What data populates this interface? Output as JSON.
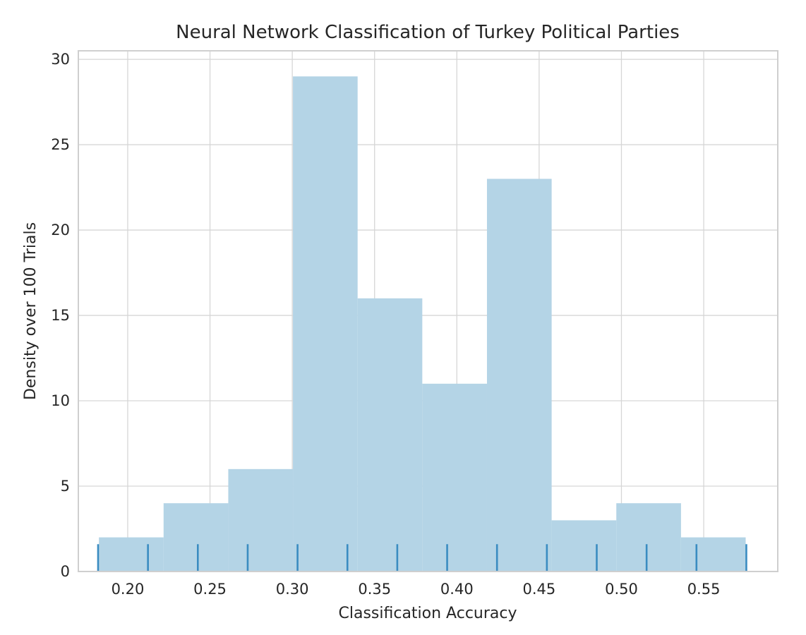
{
  "colors": {
    "bar_fill": "#b3d3e6",
    "rug": "#3a8cc1",
    "grid": "#d6d6d6",
    "text": "#262626"
  },
  "chart_data": {
    "type": "bar",
    "subtype": "histogram",
    "title": "Neural Network Classification of Turkey Political Parties",
    "xlabel": "Classification Accuracy",
    "ylabel": "Density over 100 Trials",
    "xlim": [
      0.17,
      0.595
    ],
    "ylim": [
      0,
      30.5
    ],
    "grid": true,
    "legend": "none",
    "xticks": [
      0.2,
      0.25,
      0.3,
      0.35,
      0.4,
      0.45,
      0.5,
      0.55
    ],
    "xtick_labels": [
      "0.20",
      "0.25",
      "0.30",
      "0.35",
      "0.40",
      "0.45",
      "0.50",
      "0.55"
    ],
    "yticks": [
      0,
      5,
      10,
      15,
      20,
      25,
      30
    ],
    "ytick_labels": [
      "0",
      "5",
      "10",
      "15",
      "20",
      "25",
      "30"
    ],
    "bins": [
      {
        "x0": 0.1825,
        "x1": 0.2218,
        "value": 2
      },
      {
        "x0": 0.2218,
        "x1": 0.2611,
        "value": 4
      },
      {
        "x0": 0.2611,
        "x1": 0.3004,
        "value": 6
      },
      {
        "x0": 0.3004,
        "x1": 0.3397,
        "value": 29
      },
      {
        "x0": 0.3397,
        "x1": 0.379,
        "value": 16
      },
      {
        "x0": 0.379,
        "x1": 0.4183,
        "value": 11
      },
      {
        "x0": 0.4183,
        "x1": 0.4576,
        "value": 23
      },
      {
        "x0": 0.4576,
        "x1": 0.4969,
        "value": 3
      },
      {
        "x0": 0.4969,
        "x1": 0.5362,
        "value": 4
      },
      {
        "x0": 0.5362,
        "x1": 0.5755,
        "value": 2
      }
    ],
    "rug_values": [
      0.182,
      0.2123,
      0.2426,
      0.2729,
      0.3032,
      0.3335,
      0.3638,
      0.3941,
      0.4244,
      0.4547,
      0.485,
      0.5153,
      0.5456,
      0.5759
    ],
    "rug_height": 1.6
  }
}
